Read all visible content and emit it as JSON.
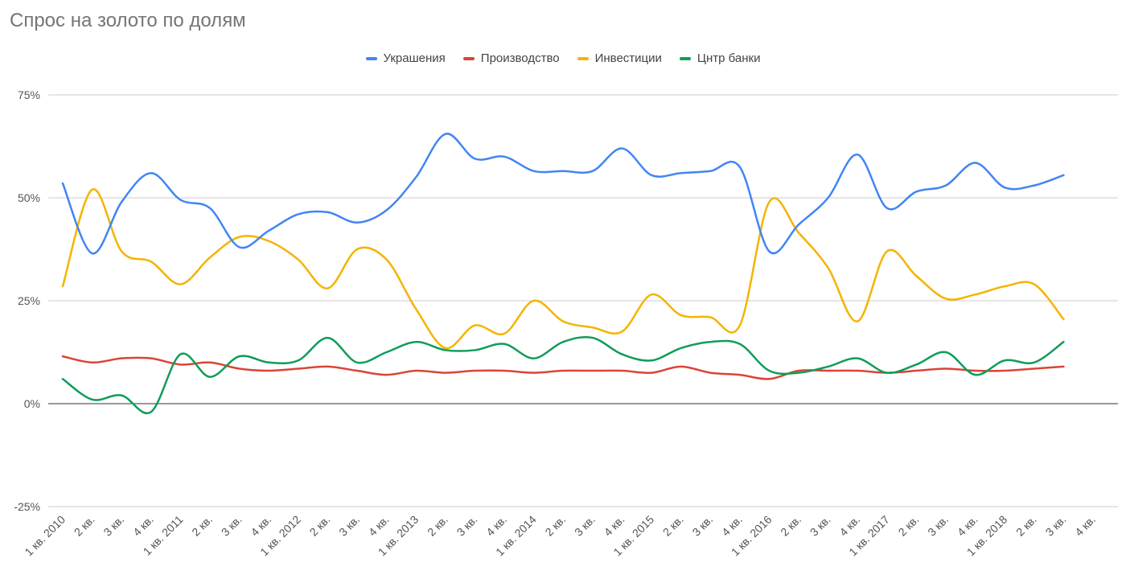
{
  "chart_data": {
    "type": "line",
    "title": "Спрос на золото по долям",
    "xlabel": "",
    "ylabel": "",
    "ylim": [
      -25,
      75
    ],
    "yticks": [
      75,
      50,
      25,
      0,
      -25
    ],
    "ytick_labels": [
      "75%",
      "50%",
      "25%",
      "0%",
      "-25%"
    ],
    "categories": [
      "1 кв. 2010",
      "2 кв.",
      "3 кв.",
      "4 кв.",
      "1 кв. 2011",
      "2 кв.",
      "3 кв.",
      "4 кв.",
      "1 кв. 2012",
      "2 кв.",
      "3 кв.",
      "4 кв.",
      "1 кв. 2013",
      "2 кв.",
      "3 кв.",
      "4 кв.",
      "1 кв. 2014",
      "2 кв.",
      "3 кв.",
      "4 кв.",
      "1 кв. 2015",
      "2 кв.",
      "3 кв.",
      "4 кв.",
      "1 кв. 2016",
      "2 кв.",
      "3 кв.",
      "4 кв.",
      "1 кв. 2017",
      "2 кв.",
      "3 кв.",
      "4 кв.",
      "1 кв. 2018",
      "2 кв.",
      "3 кв.",
      "4 кв."
    ],
    "series": [
      {
        "name": "Украшения",
        "color": "#4285f4",
        "values": [
          53.5,
          36.5,
          49,
          56,
          49.5,
          47.5,
          38,
          42,
          46,
          46.5,
          44,
          47,
          55,
          65.5,
          59.5,
          60,
          56.5,
          56.5,
          56.5,
          62,
          55.5,
          56,
          56.5,
          57.5,
          37,
          43.5,
          50,
          60.5,
          47.5,
          51.5,
          53,
          58.5,
          52.5,
          53,
          55.5,
          null
        ]
      },
      {
        "name": "Производство",
        "color": "#db4437",
        "values": [
          11.5,
          10,
          11,
          11,
          9.5,
          10,
          8.5,
          8,
          8.5,
          9,
          8,
          7,
          8,
          7.5,
          8,
          8,
          7.5,
          8,
          8,
          8,
          7.5,
          9,
          7.5,
          7,
          6,
          8,
          8,
          8,
          7.5,
          8,
          8.5,
          8,
          8,
          8.5,
          9,
          null
        ]
      },
      {
        "name": "Инвестиции",
        "color": "#f4b400",
        "values": [
          28.5,
          52,
          37,
          34.5,
          29,
          35.5,
          40.5,
          39.5,
          35,
          28,
          37.5,
          35,
          23,
          13.5,
          19,
          17,
          25,
          20,
          18.5,
          17.5,
          26.5,
          21.5,
          21,
          19,
          49,
          41.5,
          33,
          20,
          37,
          31,
          25.5,
          26.5,
          28.5,
          29,
          20.5,
          null
        ]
      },
      {
        "name": "Цнтр банки",
        "color": "#0f9d58",
        "values": [
          6,
          1,
          2,
          -2,
          12,
          6.5,
          11.5,
          10,
          10.5,
          16,
          10,
          12.5,
          15,
          13,
          13,
          14.5,
          11,
          15,
          16,
          12,
          10.5,
          13.5,
          15,
          14.5,
          8,
          7.5,
          9,
          11,
          7.5,
          9.5,
          12.5,
          7,
          10.5,
          10,
          15,
          null
        ]
      }
    ]
  }
}
